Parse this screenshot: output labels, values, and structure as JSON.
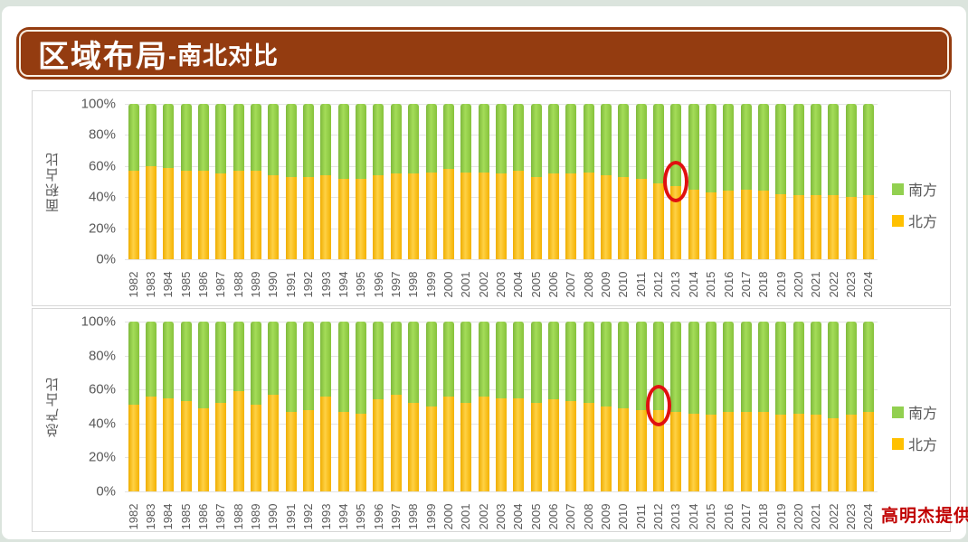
{
  "title": {
    "main": "区域布局",
    "sub": "-南北对比"
  },
  "watermark": "高明杰提供",
  "legend": {
    "south": "南方",
    "north": "北方"
  },
  "colors": {
    "south_green": "#92d050",
    "north_yellow": "#ffc000",
    "title_bar_brown": "#943c10",
    "annotation_red": "#e01010",
    "watermark_red": "#c00000"
  },
  "chart_data": [
    {
      "type": "bar",
      "stacked": true,
      "normalized": true,
      "ylabel": "面积占比",
      "yticks": [
        "0%",
        "20%",
        "40%",
        "60%",
        "80%",
        "100%"
      ],
      "ylim": [
        0,
        100
      ],
      "grid": true,
      "legend_position": "right",
      "categories": [
        "1982",
        "1983",
        "1984",
        "1985",
        "1986",
        "1987",
        "1988",
        "1989",
        "1990",
        "1991",
        "1992",
        "1993",
        "1994",
        "1995",
        "1996",
        "1997",
        "1998",
        "1999",
        "2000",
        "2001",
        "2002",
        "2003",
        "2004",
        "2005",
        "2006",
        "2007",
        "2008",
        "2009",
        "2010",
        "2011",
        "2012",
        "2013",
        "2014",
        "2015",
        "2016",
        "2017",
        "2018",
        "2019",
        "2020",
        "2021",
        "2022",
        "2023",
        "2024"
      ],
      "series": [
        {
          "name": "北方",
          "values": [
            57,
            60,
            59,
            57,
            57,
            55,
            57,
            57,
            54,
            53,
            53,
            54,
            52,
            52,
            54,
            55,
            55,
            56,
            58,
            56,
            56,
            55,
            57,
            53,
            55,
            55,
            56,
            54,
            53,
            52,
            49,
            47,
            45,
            43,
            44,
            45,
            44,
            42,
            41,
            41,
            41,
            40,
            41
          ]
        },
        {
          "name": "南方",
          "values": [
            43,
            40,
            41,
            43,
            43,
            45,
            43,
            43,
            46,
            47,
            47,
            46,
            48,
            48,
            46,
            45,
            45,
            44,
            42,
            44,
            44,
            45,
            43,
            47,
            45,
            45,
            44,
            46,
            47,
            48,
            51,
            53,
            55,
            57,
            56,
            55,
            56,
            58,
            59,
            59,
            59,
            60,
            59
          ]
        }
      ],
      "annotation": {
        "shape": "ellipse",
        "year": "2013"
      }
    },
    {
      "type": "bar",
      "stacked": true,
      "normalized": true,
      "ylabel": "总产占比",
      "yticks": [
        "0%",
        "20%",
        "40%",
        "60%",
        "80%",
        "100%"
      ],
      "ylim": [
        0,
        100
      ],
      "grid": true,
      "legend_position": "right",
      "categories": [
        "1982",
        "1983",
        "1984",
        "1985",
        "1986",
        "1987",
        "1988",
        "1989",
        "1990",
        "1991",
        "1992",
        "1993",
        "1994",
        "1995",
        "1996",
        "1997",
        "1998",
        "1999",
        "2000",
        "2001",
        "2002",
        "2003",
        "2004",
        "2005",
        "2006",
        "2007",
        "2008",
        "2009",
        "2010",
        "2011",
        "2012",
        "2013",
        "2014",
        "2015",
        "2016",
        "2017",
        "2018",
        "2019",
        "2020",
        "2021",
        "2022",
        "2023",
        "2024"
      ],
      "series": [
        {
          "name": "北方",
          "values": [
            51,
            56,
            55,
            53,
            49,
            52,
            59,
            51,
            57,
            47,
            48,
            56,
            47,
            46,
            54,
            57,
            52,
            50,
            56,
            52,
            56,
            55,
            55,
            52,
            54,
            53,
            52,
            50,
            49,
            48,
            48,
            47,
            46,
            45,
            47,
            47,
            47,
            45,
            46,
            45,
            43,
            45,
            47
          ]
        },
        {
          "name": "南方",
          "values": [
            49,
            44,
            45,
            47,
            51,
            48,
            41,
            49,
            43,
            53,
            52,
            44,
            53,
            54,
            46,
            43,
            48,
            50,
            44,
            48,
            44,
            45,
            45,
            48,
            46,
            47,
            48,
            50,
            51,
            52,
            52,
            53,
            54,
            55,
            53,
            53,
            53,
            55,
            54,
            55,
            57,
            55,
            53
          ]
        }
      ],
      "annotation": {
        "shape": "ellipse",
        "year": "2012"
      }
    }
  ]
}
